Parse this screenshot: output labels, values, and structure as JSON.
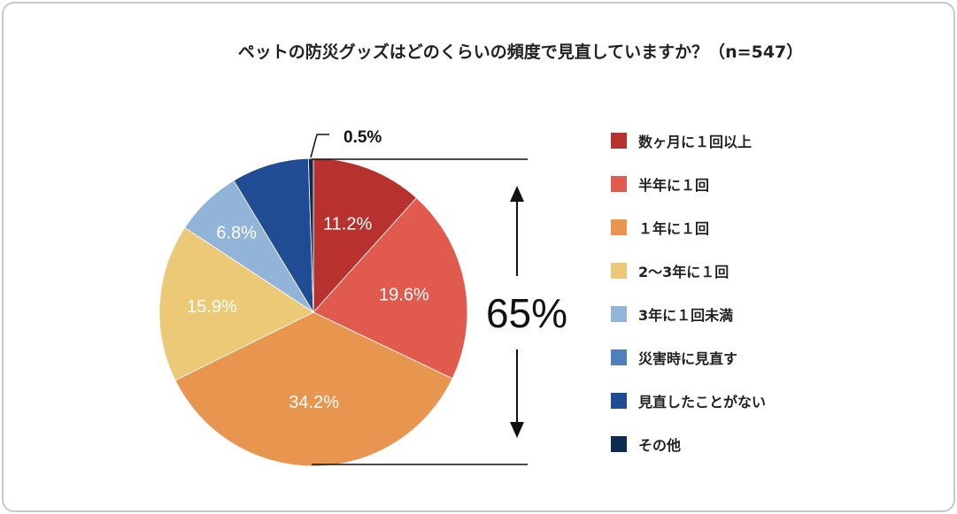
{
  "chart_data": {
    "type": "pie",
    "title": "ペットの防災グッズはどのくらいの頻度で見直していますか？（n=547）",
    "categories": [
      "数ヶ月に１回以上",
      "半年に１回",
      "１年に１回",
      "2〜3年に１回",
      "3年に１回未満",
      "災害時に見直す",
      "見直したことがない",
      "その他"
    ],
    "values": [
      11.2,
      19.6,
      34.2,
      15.9,
      6.8,
      0,
      7.8,
      0.5
    ],
    "labels": [
      "11.2%",
      "19.6%",
      "34.2%",
      "15.9%",
      "6.8%",
      "",
      "",
      "0.5%"
    ],
    "colors": [
      "#b7312f",
      "#e05a4e",
      "#e8954f",
      "#ecc977",
      "#92b4d9",
      "#4f7fbd",
      "#1f4c92",
      "#0f2a4f"
    ],
    "bracket_label": "65%",
    "legend_placement": "right"
  }
}
